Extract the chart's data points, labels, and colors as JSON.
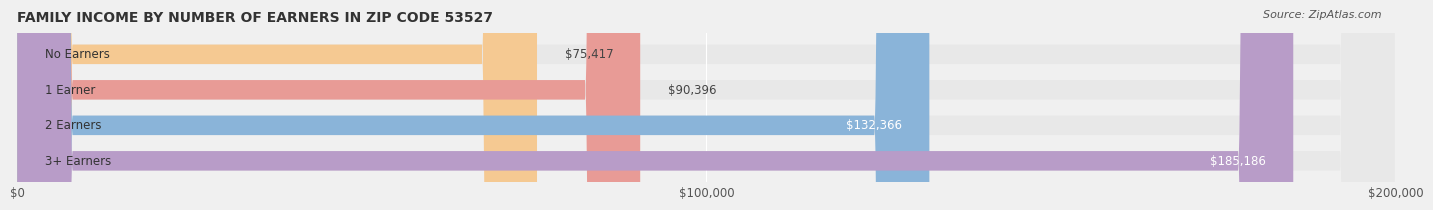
{
  "title": "FAMILY INCOME BY NUMBER OF EARNERS IN ZIP CODE 53527",
  "source": "Source: ZipAtlas.com",
  "categories": [
    "No Earners",
    "1 Earner",
    "2 Earners",
    "3+ Earners"
  ],
  "values": [
    75417,
    90396,
    132366,
    185186
  ],
  "bar_colors": [
    "#f5c992",
    "#e89b96",
    "#8ab4d9",
    "#b89cc8"
  ],
  "label_colors": [
    "#555555",
    "#555555",
    "#ffffff",
    "#ffffff"
  ],
  "xlim": [
    0,
    200000
  ],
  "xticks": [
    0,
    100000,
    200000
  ],
  "xtick_labels": [
    "$0",
    "$100,000",
    "$200,000"
  ],
  "background_color": "#f0f0f0",
  "bar_background_color": "#e8e8e8",
  "bar_height": 0.55,
  "title_fontsize": 10,
  "label_fontsize": 8.5,
  "value_fontsize": 8.5,
  "tick_fontsize": 8.5,
  "source_fontsize": 8
}
